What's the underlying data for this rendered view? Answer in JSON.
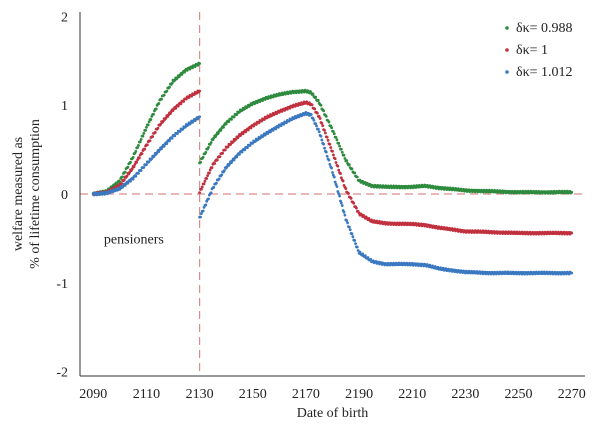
{
  "chart_data": {
    "type": "scatter",
    "title": "",
    "xlabel": "Date of birth",
    "ylabel_lines": [
      "welfare measured as",
      "% of lifetime consumption"
    ],
    "xlim": [
      2085,
      2275
    ],
    "ylim": [
      -2.05,
      2.05
    ],
    "xticks": [
      2090,
      2110,
      2130,
      2150,
      2170,
      2190,
      2210,
      2230,
      2250,
      2270
    ],
    "yticks": [
      -2,
      -1,
      0,
      1,
      2
    ],
    "grid": false,
    "legend_position": "top-right",
    "reference_lines": {
      "vertical_x": 2130,
      "horizontal_y": 0,
      "style": "dashed",
      "color": "#d98c8c"
    },
    "annotations": [
      {
        "text": "pensioners",
        "x": 2100,
        "y": -0.5
      }
    ],
    "series": [
      {
        "name": "δκ= 0.988",
        "color": "#2e8b3e",
        "segments": [
          [
            [
              2090,
              0.0
            ],
            [
              2095,
              0.03
            ],
            [
              2100,
              0.15
            ],
            [
              2105,
              0.42
            ],
            [
              2110,
              0.75
            ],
            [
              2115,
              1.05
            ],
            [
              2120,
              1.27
            ],
            [
              2125,
              1.4
            ],
            [
              2130,
              1.47
            ]
          ],
          [
            [
              2130,
              0.35
            ],
            [
              2135,
              0.62
            ],
            [
              2140,
              0.8
            ],
            [
              2145,
              0.93
            ],
            [
              2150,
              1.02
            ],
            [
              2155,
              1.08
            ],
            [
              2160,
              1.12
            ],
            [
              2165,
              1.15
            ],
            [
              2170,
              1.16
            ],
            [
              2172,
              1.14
            ],
            [
              2175,
              1.03
            ],
            [
              2180,
              0.72
            ],
            [
              2185,
              0.38
            ],
            [
              2190,
              0.15
            ],
            [
              2195,
              0.09
            ],
            [
              2200,
              0.08
            ],
            [
              2210,
              0.08
            ],
            [
              2215,
              0.09
            ],
            [
              2220,
              0.07
            ],
            [
              2230,
              0.04
            ],
            [
              2240,
              0.03
            ],
            [
              2250,
              0.02
            ],
            [
              2260,
              0.02
            ],
            [
              2270,
              0.02
            ]
          ]
        ]
      },
      {
        "name": "δκ= 1",
        "color": "#c0303e",
        "segments": [
          [
            [
              2090,
              0.0
            ],
            [
              2095,
              0.02
            ],
            [
              2100,
              0.1
            ],
            [
              2105,
              0.3
            ],
            [
              2110,
              0.55
            ],
            [
              2115,
              0.78
            ],
            [
              2120,
              0.95
            ],
            [
              2125,
              1.08
            ],
            [
              2130,
              1.16
            ]
          ],
          [
            [
              2130,
              0.02
            ],
            [
              2135,
              0.33
            ],
            [
              2140,
              0.52
            ],
            [
              2145,
              0.66
            ],
            [
              2150,
              0.77
            ],
            [
              2155,
              0.86
            ],
            [
              2160,
              0.93
            ],
            [
              2165,
              0.99
            ],
            [
              2170,
              1.03
            ],
            [
              2172,
              1.01
            ],
            [
              2175,
              0.87
            ],
            [
              2180,
              0.47
            ],
            [
              2185,
              0.05
            ],
            [
              2190,
              -0.22
            ],
            [
              2195,
              -0.31
            ],
            [
              2200,
              -0.33
            ],
            [
              2210,
              -0.34
            ],
            [
              2215,
              -0.35
            ],
            [
              2220,
              -0.38
            ],
            [
              2230,
              -0.42
            ],
            [
              2240,
              -0.43
            ],
            [
              2250,
              -0.44
            ],
            [
              2260,
              -0.44
            ],
            [
              2270,
              -0.44
            ]
          ]
        ]
      },
      {
        "name": "δκ= 1.012",
        "color": "#3a78c0",
        "segments": [
          [
            [
              2090,
              0.0
            ],
            [
              2095,
              0.01
            ],
            [
              2100,
              0.06
            ],
            [
              2105,
              0.18
            ],
            [
              2110,
              0.34
            ],
            [
              2115,
              0.5
            ],
            [
              2120,
              0.65
            ],
            [
              2125,
              0.77
            ],
            [
              2130,
              0.87
            ]
          ],
          [
            [
              2130,
              -0.27
            ],
            [
              2135,
              0.07
            ],
            [
              2140,
              0.3
            ],
            [
              2145,
              0.46
            ],
            [
              2150,
              0.58
            ],
            [
              2155,
              0.68
            ],
            [
              2160,
              0.77
            ],
            [
              2165,
              0.85
            ],
            [
              2170,
              0.91
            ],
            [
              2172,
              0.89
            ],
            [
              2175,
              0.7
            ],
            [
              2180,
              0.25
            ],
            [
              2185,
              -0.28
            ],
            [
              2190,
              -0.66
            ],
            [
              2195,
              -0.76
            ],
            [
              2200,
              -0.79
            ],
            [
              2210,
              -0.79
            ],
            [
              2215,
              -0.8
            ],
            [
              2220,
              -0.84
            ],
            [
              2230,
              -0.88
            ],
            [
              2240,
              -0.89
            ],
            [
              2250,
              -0.89
            ],
            [
              2260,
              -0.89
            ],
            [
              2270,
              -0.89
            ]
          ]
        ]
      }
    ]
  }
}
